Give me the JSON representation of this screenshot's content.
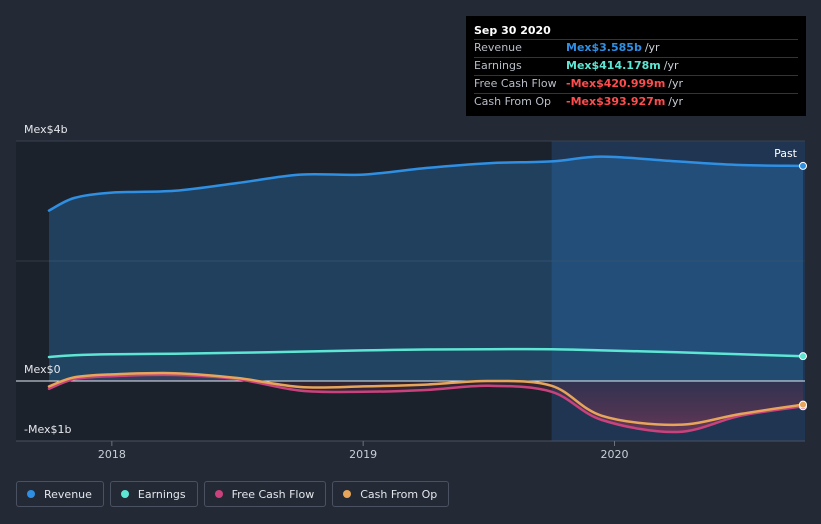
{
  "chart_data": {
    "type": "area",
    "title": "",
    "ylim": [
      -1.0,
      4.0
    ],
    "y_ticks": [
      {
        "value": 4.0,
        "label": "Mex$4b"
      },
      {
        "value": 0.0,
        "label": "Mex$0"
      },
      {
        "value": -1.0,
        "label": "-Mex$1b"
      }
    ],
    "xlim": [
      2017.75,
      2020.75
    ],
    "x_ticks": [
      {
        "value": 2018.0,
        "label": "2018"
      },
      {
        "value": 2019.0,
        "label": "2019"
      },
      {
        "value": 2020.0,
        "label": "2020"
      }
    ],
    "forecast_boundary": 2019.75,
    "past_label": "Past",
    "x": [
      2017.75,
      2017.85,
      2018.0,
      2018.25,
      2018.5,
      2018.75,
      2019.0,
      2019.25,
      2019.5,
      2019.75,
      2019.95,
      2020.25,
      2020.5,
      2020.75
    ],
    "series": [
      {
        "name": "Revenue",
        "color": "#2f8fe3",
        "values": [
          2.84,
          3.05,
          3.14,
          3.17,
          3.3,
          3.44,
          3.44,
          3.55,
          3.63,
          3.66,
          3.74,
          3.66,
          3.6,
          3.585
        ]
      },
      {
        "name": "Earnings",
        "color": "#5ee6d4",
        "values": [
          0.4,
          0.43,
          0.445,
          0.455,
          0.47,
          0.49,
          0.51,
          0.525,
          0.53,
          0.53,
          0.51,
          0.48,
          0.445,
          0.414
        ]
      },
      {
        "name": "Free Cash Flow",
        "color": "#c9427d",
        "values": [
          -0.13,
          0.03,
          0.08,
          0.1,
          0.03,
          -0.16,
          -0.18,
          -0.15,
          -0.08,
          -0.18,
          -0.65,
          -0.85,
          -0.58,
          -0.421
        ]
      },
      {
        "name": "Cash From Op",
        "color": "#e6a55a",
        "values": [
          -0.09,
          0.06,
          0.11,
          0.13,
          0.05,
          -0.1,
          -0.09,
          -0.06,
          0.0,
          -0.08,
          -0.58,
          -0.73,
          -0.55,
          -0.394
        ]
      }
    ]
  },
  "tooltip": {
    "date": "Sep 30 2020",
    "rows": [
      {
        "label": "Revenue",
        "value": "Mex$3.585b",
        "unit": "/yr",
        "color": "#2f8fe3"
      },
      {
        "label": "Earnings",
        "value": "Mex$414.178m",
        "unit": "/yr",
        "color": "#5ee6d4"
      },
      {
        "label": "Free Cash Flow",
        "value": "-Mex$420.999m",
        "unit": "/yr",
        "color": "#ff4d4d"
      },
      {
        "label": "Cash From Op",
        "value": "-Mex$393.927m",
        "unit": "/yr",
        "color": "#ff4d4d"
      }
    ]
  },
  "legend": [
    {
      "label": "Revenue",
      "color": "#2f8fe3"
    },
    {
      "label": "Earnings",
      "color": "#5ee6d4"
    },
    {
      "label": "Free Cash Flow",
      "color": "#c9427d"
    },
    {
      "label": "Cash From Op",
      "color": "#e6a55a"
    }
  ]
}
